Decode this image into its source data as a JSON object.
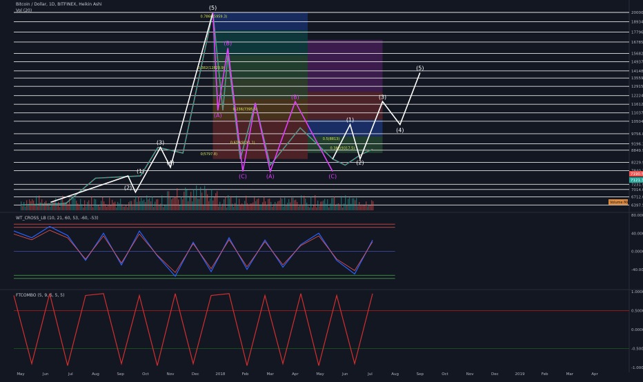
{
  "header": {
    "title": "Bitcoin / Dollar, 1D, BITFINEX, Heikin Ashi",
    "volume_label": "Vol (20)"
  },
  "indicators": {
    "wt_label": "WT_CROSS_LB (10, 21, 60, 53, -60, -53)",
    "ftc_label": "FTCOMBO (5, 9, 5, 5, 5)",
    "volume_badge": "Volume MA"
  },
  "colors": {
    "background": "#131722",
    "wave_white": "#ffffff",
    "correction_magenta": "#e040fb",
    "bull_candle": "#26a69a",
    "bear_candle": "#ef5350",
    "wt_line": "#2962ff",
    "ftc_line": "#d32f2f"
  },
  "chart_data": [
    {
      "type": "line",
      "name": "price",
      "title": "Bitcoin / Dollar, 1D, BITFINEX, Heikin Ashi",
      "x_ticks": [
        "May",
        "Jun",
        "Jul",
        "Aug",
        "Sep",
        "Oct",
        "Nov",
        "Dec",
        "2018",
        "Feb",
        "Mar",
        "Apr",
        "May",
        "Jun",
        "Jul",
        "Aug",
        "Sep",
        "Oct",
        "Nov",
        "Dec",
        "2019",
        "Feb",
        "Mar",
        "Apr"
      ],
      "y_scale": "log",
      "y_ticks": [
        "20000.0",
        "18934.0",
        "17796.8",
        "16785.5",
        "15682.0",
        "14937.8",
        "14148.4",
        "13559.6",
        "12915.4",
        "12224.1",
        "11612.9",
        "11037.4",
        "10504.2",
        "9756.8",
        "9196.3",
        "8849.9",
        "8229.9",
        "7840.3",
        "7231.9",
        "7014.0",
        "6712.0",
        "6397.5"
      ],
      "price_badges": [
        {
          "label": "7190.5",
          "color": "#ef5350"
        },
        {
          "label": "7121.3",
          "color": "#26a69a"
        }
      ],
      "price_ylim": [
        6200,
        20000
      ],
      "price_path": [
        {
          "x": 0,
          "y": 6400
        },
        {
          "x": 1.8,
          "y": 6450
        },
        {
          "x": 3.0,
          "y": 7500
        },
        {
          "x": 4.8,
          "y": 7600
        },
        {
          "x": 5.5,
          "y": 9000
        },
        {
          "x": 6.5,
          "y": 8700
        },
        {
          "x": 7.7,
          "y": 20000
        },
        {
          "x": 8.1,
          "y": 11200
        },
        {
          "x": 8.3,
          "y": 15500
        },
        {
          "x": 8.8,
          "y": 8400
        },
        {
          "x": 9.4,
          "y": 11700
        },
        {
          "x": 10.0,
          "y": 8100
        },
        {
          "x": 11.2,
          "y": 10100
        },
        {
          "x": 12.5,
          "y": 8400
        },
        {
          "x": 13.0,
          "y": 8100
        },
        {
          "x": 13.6,
          "y": 8600
        },
        {
          "x": 14.1,
          "y": 8900
        }
      ],
      "impulse_labels": [
        {
          "label": "(1)",
          "x": 4.8,
          "y": 7600
        },
        {
          "label": "(2)",
          "x": 4.3,
          "y": 6900
        },
        {
          "label": "(3)",
          "x": 5.6,
          "y": 9000
        },
        {
          "label": "(4)",
          "x": 6.0,
          "y": 8000
        },
        {
          "label": "(5)",
          "x": 7.7,
          "y": 20000
        }
      ],
      "correction_labels": [
        {
          "label": "(A)",
          "x": 7.9,
          "y": 11200
        },
        {
          "label": "(B)",
          "x": 8.3,
          "y": 16200
        },
        {
          "label": "(C)",
          "x": 8.9,
          "y": 7800
        },
        {
          "label": "(A)",
          "x": 10.0,
          "y": 7800
        },
        {
          "label": "(B)",
          "x": 11.0,
          "y": 11800
        },
        {
          "label": "(C)",
          "x": 12.5,
          "y": 7800
        }
      ],
      "forecast_path": [
        {
          "x": 12.5,
          "y": 8400
        },
        {
          "x": 13.2,
          "y": 10300
        },
        {
          "x": 13.6,
          "y": 8400
        },
        {
          "x": 14.5,
          "y": 11800
        },
        {
          "x": 15.2,
          "y": 10300
        },
        {
          "x": 16.0,
          "y": 14000
        }
      ],
      "forecast_labels": [
        {
          "label": "(1)",
          "x": 13.2,
          "y": 10300
        },
        {
          "label": "(2)",
          "x": 13.6,
          "y": 8000
        },
        {
          "label": "(3)",
          "x": 14.5,
          "y": 11800
        },
        {
          "label": "(4)",
          "x": 15.2,
          "y": 9700
        },
        {
          "label": "(5)",
          "x": 16.0,
          "y": 14000
        }
      ],
      "fib_labels": [
        "0.786(15959.3)",
        "0.382(12820.9)",
        "0.618(9191.1)",
        "0.236(7395.5)",
        "0(5797.8)",
        "0.5(8813)",
        "0.382(9317.5)"
      ]
    },
    {
      "type": "line",
      "name": "WT_CROSS_LB",
      "ylim": [
        -80,
        80
      ],
      "y_ticks": [
        "80.0000",
        "40.0000",
        "0.0000",
        "-40.0000"
      ],
      "levels": [
        60,
        53,
        -53,
        -60
      ],
      "series": [
        {
          "x": 0,
          "y": 45
        },
        {
          "x": 1,
          "y": 30
        },
        {
          "x": 2,
          "y": 55
        },
        {
          "x": 3,
          "y": 35
        },
        {
          "x": 4,
          "y": -20
        },
        {
          "x": 5,
          "y": 40
        },
        {
          "x": 6,
          "y": -30
        },
        {
          "x": 7,
          "y": 45
        },
        {
          "x": 8,
          "y": -10
        },
        {
          "x": 9,
          "y": -55
        },
        {
          "x": 10,
          "y": 20
        },
        {
          "x": 11,
          "y": -45
        },
        {
          "x": 12,
          "y": 30
        },
        {
          "x": 13,
          "y": -40
        },
        {
          "x": 14,
          "y": 25
        },
        {
          "x": 15,
          "y": -35
        },
        {
          "x": 16,
          "y": 15
        },
        {
          "x": 17,
          "y": 40
        },
        {
          "x": 18,
          "y": -20
        },
        {
          "x": 19,
          "y": -50
        },
        {
          "x": 20,
          "y": 25
        }
      ]
    },
    {
      "type": "line",
      "name": "FTCOMBO",
      "ylim": [
        -1,
        1
      ],
      "y_ticks": [
        "1.0000",
        "0.5000",
        "0.0000",
        "-0.5000",
        "-1.0000"
      ],
      "levels": [
        0.5,
        -0.5
      ],
      "series": [
        {
          "x": 0,
          "y": 0.9
        },
        {
          "x": 1,
          "y": -0.9
        },
        {
          "x": 2,
          "y": 0.95
        },
        {
          "x": 3,
          "y": -0.95
        },
        {
          "x": 4,
          "y": 0.9
        },
        {
          "x": 5,
          "y": 0.95
        },
        {
          "x": 6,
          "y": -0.9
        },
        {
          "x": 7,
          "y": 0.9
        },
        {
          "x": 8,
          "y": -0.95
        },
        {
          "x": 9,
          "y": 0.95
        },
        {
          "x": 10,
          "y": -0.9
        },
        {
          "x": 11,
          "y": 0.9
        },
        {
          "x": 12,
          "y": 0.95
        },
        {
          "x": 13,
          "y": -0.95
        },
        {
          "x": 14,
          "y": 0.9
        },
        {
          "x": 15,
          "y": -0.9
        },
        {
          "x": 16,
          "y": 0.95
        },
        {
          "x": 17,
          "y": -0.95
        },
        {
          "x": 18,
          "y": 0.9
        },
        {
          "x": 19,
          "y": -0.9
        },
        {
          "x": 20,
          "y": 0.95
        }
      ]
    }
  ]
}
